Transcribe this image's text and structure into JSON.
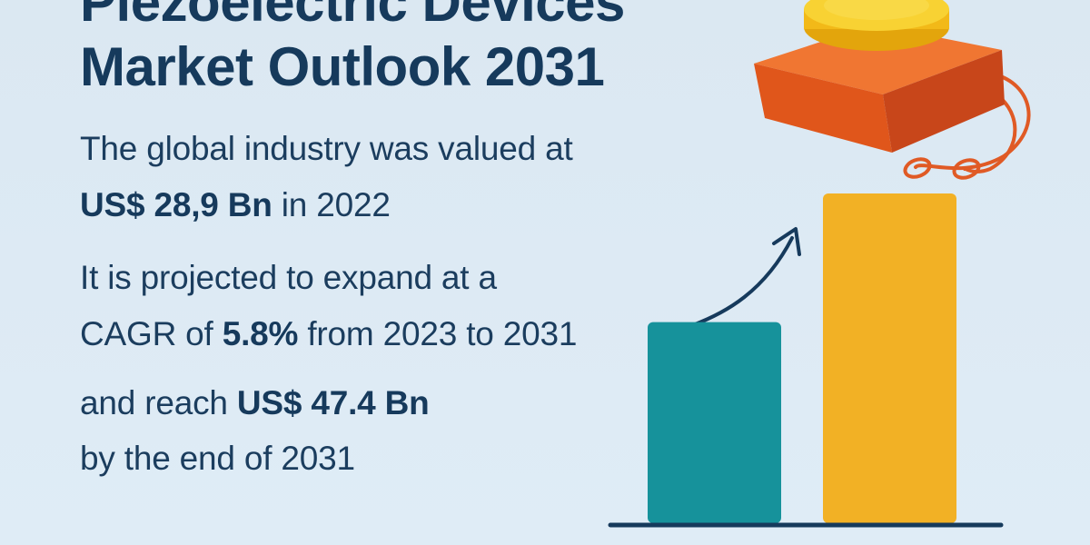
{
  "header": {
    "title_line1": "Piezoelectric Devices",
    "title_line2": "Market Outlook 2031"
  },
  "text": {
    "line1": "The global industry was valued at",
    "line2_value": "US$ 28,9 Bn",
    "line2_rest": " in 2022",
    "line3": "It is projected to expand at a",
    "line4_prefix": "CAGR of ",
    "line4_value": "5.8%",
    "line4_rest": " from 2023 to 2031",
    "line5_prefix": "and reach ",
    "line5_value": "US$ 47.4 Bn",
    "line6": "by the end of 2031"
  },
  "colors": {
    "background": "#dce9f3",
    "text": "#163a5c",
    "bar_2022": "#16929b",
    "bar_2031": "#f2b125",
    "device_base": "#e8621e",
    "device_disc": "#f5c21b",
    "axis": "#163a5c"
  },
  "chart_data": {
    "type": "bar",
    "categories": [
      "",
      ""
    ],
    "values": [
      28.9,
      47.4
    ],
    "title": "",
    "xlabel": "",
    "ylabel": "",
    "ylim": [
      0,
      47.4
    ],
    "grid": false,
    "legend": "none",
    "annotations": [
      "growth-arrow"
    ]
  },
  "icons": {
    "device": "piezoelectric-device-icon",
    "arrow": "growth-arrow-icon"
  }
}
